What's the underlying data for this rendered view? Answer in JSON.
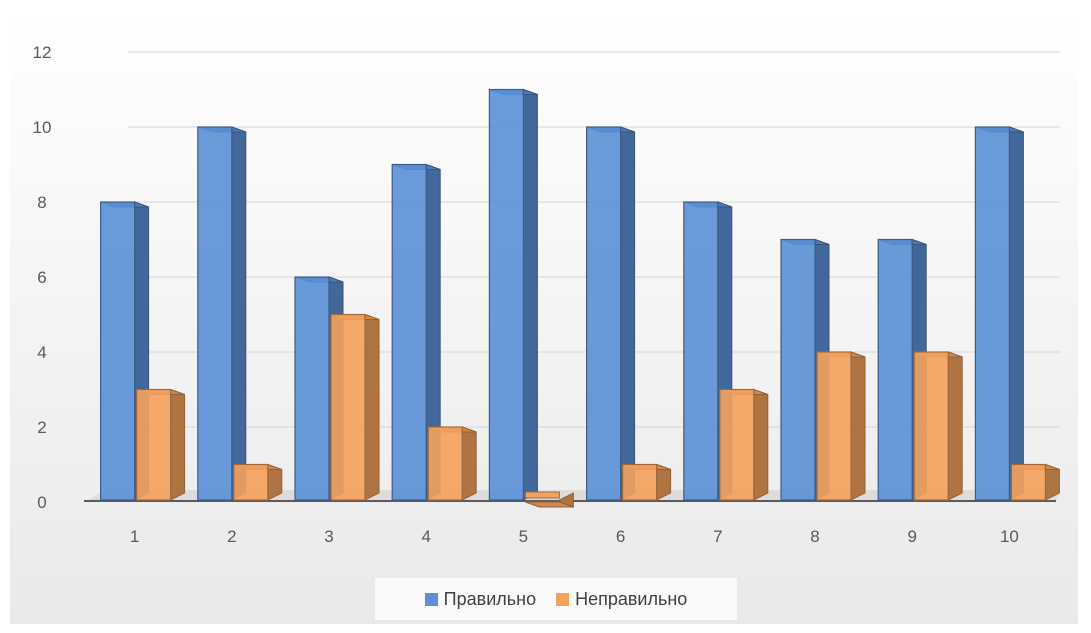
{
  "chart_data": {
    "type": "bar",
    "categories": [
      "1",
      "2",
      "3",
      "4",
      "5",
      "6",
      "7",
      "8",
      "9",
      "10"
    ],
    "series": [
      {
        "name": "Правильно",
        "values": [
          8,
          10,
          6,
          9,
          11,
          10,
          8,
          7,
          7,
          10
        ],
        "color": "#5b8fd6"
      },
      {
        "name": "Неправильно",
        "values": [
          3,
          1,
          5,
          2,
          0,
          1,
          3,
          4,
          4,
          1
        ],
        "color": "#f4a15c"
      }
    ],
    "ylim": [
      0,
      12
    ],
    "yticks": [
      "0",
      "2",
      "4",
      "6",
      "8",
      "10",
      "12"
    ],
    "grid": true,
    "legend": "bottom",
    "title": "",
    "xlabel": "",
    "ylabel": ""
  }
}
